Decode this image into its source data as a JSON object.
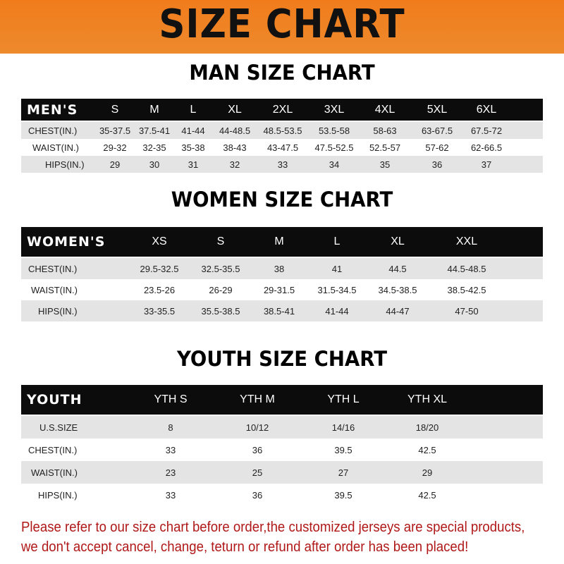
{
  "title": "SIZE CHART",
  "colors": {
    "banner": "#f07c1c",
    "header_row": "#0c0c0c",
    "stripe": "#e4e4e4",
    "notice": "#b01818"
  },
  "men": {
    "title": "MAN SIZE CHART",
    "header": "MEN'S",
    "sizes": [
      "S",
      "M",
      "L",
      "XL",
      "2XL",
      "3XL",
      "4XL",
      "5XL",
      "6XL"
    ],
    "rows": [
      {
        "label": "CHEST(IN.)",
        "values": [
          "35-37.5",
          "37.5-41",
          "41-44",
          "44-48.5",
          "48.5-53.5",
          "53.5-58",
          "58-63",
          "63-67.5",
          "67.5-72"
        ]
      },
      {
        "label": "WAIST(IN.)",
        "values": [
          "29-32",
          "32-35",
          "35-38",
          "38-43",
          "43-47.5",
          "47.5-52.5",
          "52.5-57",
          "57-62",
          "62-66.5"
        ]
      },
      {
        "label": "HIPS(IN.)",
        "values": [
          "29",
          "30",
          "31",
          "32",
          "33",
          "34",
          "35",
          "36",
          "37"
        ]
      }
    ]
  },
  "women": {
    "title": "WOMEN SIZE CHART",
    "header": "WOMEN'S",
    "sizes": [
      "XS",
      "S",
      "M",
      "L",
      "XL",
      "XXL"
    ],
    "rows": [
      {
        "label": "CHEST(IN.)",
        "values": [
          "29.5-32.5",
          "32.5-35.5",
          "38",
          "41",
          "44.5",
          "44.5-48.5"
        ]
      },
      {
        "label": "WAIST(IN.)",
        "values": [
          "23.5-26",
          "26-29",
          "29-31.5",
          "31.5-34.5",
          "34.5-38.5",
          "38.5-42.5"
        ]
      },
      {
        "label": "HIPS(IN.)",
        "values": [
          "33-35.5",
          "35.5-38.5",
          "38.5-41",
          "41-44",
          "44-47",
          "47-50"
        ]
      }
    ]
  },
  "youth": {
    "title": "YOUTH SIZE CHART",
    "header": "YOUTH",
    "sizes": [
      "YTH S",
      "YTH M",
      "YTH L",
      "YTH XL"
    ],
    "rows": [
      {
        "label": "U.S.SIZE",
        "values": [
          "8",
          "10/12",
          "14/16",
          "18/20"
        ]
      },
      {
        "label": "CHEST(IN.)",
        "values": [
          "33",
          "36",
          "39.5",
          "42.5"
        ]
      },
      {
        "label": "WAIST(IN.)",
        "values": [
          "23",
          "25",
          "27",
          "29"
        ]
      },
      {
        "label": "HIPS(IN.)",
        "values": [
          "33",
          "36",
          "39.5",
          "42.5"
        ]
      }
    ]
  },
  "notice": [
    "Please refer to our size chart before order,the customized jerseys are special products,",
    "we don't accept cancel, change, teturn or refund after order has been placed!"
  ]
}
